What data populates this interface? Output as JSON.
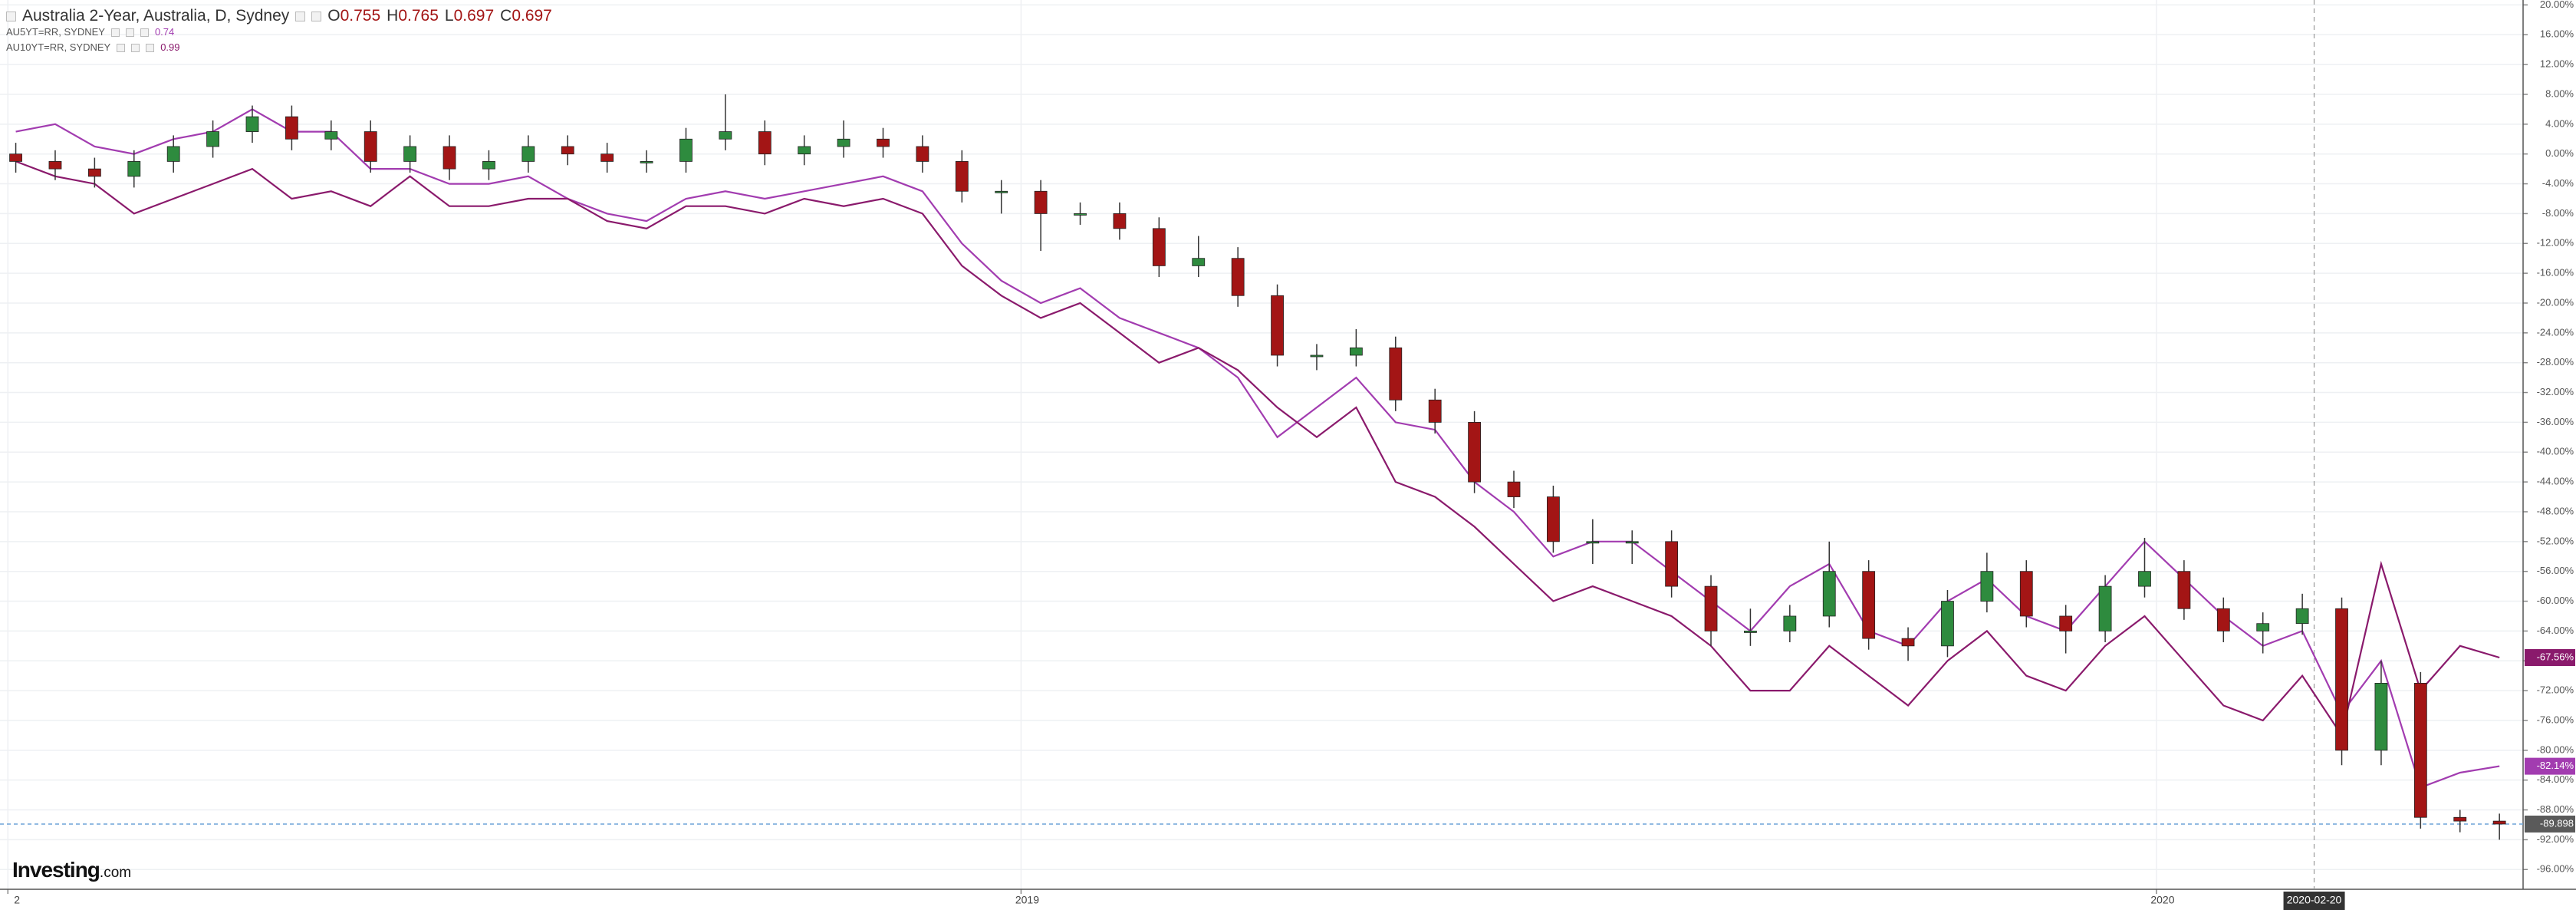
{
  "chart_data": {
    "type": "candlestick",
    "title": "Australia 2-Year, Australia, D, Sydney",
    "ohlc": [
      {
        "key": "O",
        "value": 0.755
      },
      {
        "key": "H",
        "value": 0.765
      },
      {
        "key": "L",
        "value": 0.697
      },
      {
        "key": "C",
        "value": 0.697
      }
    ],
    "up_color": "#2e8b3e",
    "down_color": "#a31515",
    "open": [
      0,
      -1,
      -2,
      -3,
      -1,
      1,
      3,
      5,
      2,
      3,
      -1,
      1,
      -2,
      -1,
      1,
      0,
      -1,
      -1,
      2,
      3,
      0,
      1,
      2,
      1,
      -1,
      -5,
      -5,
      -8,
      -8,
      -10,
      -15,
      -14,
      -19,
      -27,
      -27,
      -26,
      -33,
      -36,
      -44,
      -46,
      -52,
      -52,
      -52,
      -58,
      -64,
      -64,
      -62,
      -56,
      -65,
      -66,
      -60,
      -56,
      -62,
      -64,
      -58,
      -56,
      -61,
      -64,
      -63,
      -61,
      -80,
      -71,
      -89,
      -89.5
    ],
    "high": [
      1.5,
      0.5,
      -0.5,
      0.5,
      2.5,
      4.5,
      6.5,
      6.5,
      4.5,
      4.5,
      2.5,
      2.5,
      0.5,
      2.5,
      2.5,
      1.5,
      0.5,
      3.5,
      8,
      4.5,
      2.5,
      4.5,
      3.5,
      2.5,
      0.5,
      -3.5,
      -3.5,
      -6.5,
      -6.5,
      -8.5,
      -11,
      -12.5,
      -17.5,
      -25.5,
      -23.5,
      -24.5,
      -31.5,
      -34.5,
      -42.5,
      -44.5,
      -49,
      -50.5,
      -50.5,
      -56.5,
      -61,
      -60.5,
      -52,
      -54.5,
      -63.5,
      -58.5,
      -53.5,
      -54.5,
      -60.5,
      -56.5,
      -51.5,
      -54.5,
      -59.5,
      -61.5,
      -59,
      -59.5,
      -68,
      -69.5,
      -88,
      -88.5
    ],
    "low": [
      -2.5,
      -3.5,
      -4.5,
      -4.5,
      -2.5,
      -0.5,
      1.5,
      0.5,
      0.5,
      -2.5,
      -2.5,
      -3.5,
      -3.5,
      -2.5,
      -1.5,
      -2.5,
      -2.5,
      -2.5,
      0.5,
      -1.5,
      -1.5,
      -0.5,
      -0.5,
      -2.5,
      -6.5,
      -8,
      -13,
      -9.5,
      -11.5,
      -16.5,
      -16.5,
      -20.5,
      -28.5,
      -29,
      -28.5,
      -34.5,
      -37.5,
      -45.5,
      -47.5,
      -53.5,
      -55,
      -55,
      -59.5,
      -66,
      -66,
      -65.5,
      -63.5,
      -66.5,
      -68,
      -67.5,
      -61.5,
      -63.5,
      -67,
      -65.5,
      -59.5,
      -62.5,
      -65.5,
      -67,
      -64.5,
      -82,
      -82,
      -90.5,
      -91,
      -92
    ],
    "close": [
      -1,
      -2,
      -3,
      -1,
      1,
      3,
      5,
      2,
      3,
      -1,
      1,
      -2,
      -1,
      1,
      0,
      -1,
      -1,
      2,
      3,
      0,
      1,
      2,
      1,
      -1,
      -5,
      -5,
      -8,
      -8,
      -10,
      -15,
      -14,
      -19,
      -27,
      -27,
      -26,
      -33,
      -36,
      -44,
      -46,
      -52,
      -52,
      -52,
      -58,
      -64,
      -64,
      -62,
      -56,
      -65,
      -66,
      -60,
      -56,
      -62,
      -64,
      -58,
      -56,
      -61,
      -64,
      -63,
      -61,
      -80,
      -71,
      -89,
      -89.5,
      -89.898
    ],
    "close_labels": [
      null,
      null,
      null,
      null,
      null,
      null,
      null,
      null,
      null,
      null,
      null,
      null,
      null,
      null,
      null,
      null,
      null,
      null,
      null,
      null,
      null,
      null,
      null,
      null,
      null,
      null,
      null,
      null,
      null,
      null,
      null,
      null,
      null,
      null,
      null,
      null,
      null,
      null,
      null,
      null,
      null,
      null,
      null,
      null,
      null,
      null,
      null,
      null,
      null,
      null,
      null,
      null,
      null,
      null,
      null,
      null,
      null,
      null,
      null,
      null,
      null,
      null,
      null,
      "-89.898"
    ],
    "overlays": [
      {
        "name": "AU5YT=RR, SYDNEY",
        "legend_value": 0.74,
        "color": "#a23cb0",
        "values": [
          3,
          4,
          1,
          0,
          2,
          3,
          6,
          3,
          3,
          -2,
          -2,
          -4,
          -4,
          -3,
          -6,
          -8,
          -9,
          -6,
          -5,
          -6,
          -5,
          -4,
          -3,
          -5,
          -12,
          -17,
          -20,
          -18,
          -22,
          -24,
          -26,
          -30,
          -38,
          -34,
          -30,
          -36,
          -37,
          -44,
          -48,
          -54,
          -52,
          -52,
          -56,
          -60,
          -64,
          -58,
          -55,
          -64,
          -66,
          -60,
          -57,
          -62,
          -64,
          -58,
          -52,
          -57,
          -62,
          -66,
          -64,
          -75,
          -68,
          -85,
          -83,
          -82.14
        ],
        "value_labels": [
          null,
          null,
          null,
          null,
          null,
          null,
          null,
          null,
          null,
          null,
          null,
          null,
          null,
          null,
          null,
          null,
          null,
          null,
          null,
          null,
          null,
          null,
          null,
          null,
          null,
          null,
          null,
          null,
          null,
          null,
          null,
          null,
          null,
          null,
          null,
          null,
          null,
          null,
          null,
          null,
          null,
          null,
          null,
          null,
          null,
          null,
          null,
          null,
          null,
          null,
          null,
          null,
          null,
          null,
          null,
          null,
          null,
          null,
          null,
          null,
          null,
          null,
          null,
          "-82.14%"
        ]
      },
      {
        "name": "AU10YT=RR, SYDNEY",
        "legend_value": 0.99,
        "color": "#8a1a6c",
        "values": [
          -1,
          -3,
          -4,
          -8,
          -6,
          -4,
          -2,
          -6,
          -5,
          -7,
          -3,
          -7,
          -7,
          -6,
          -6,
          -9,
          -10,
          -7,
          -7,
          -8,
          -6,
          -7,
          -6,
          -8,
          -15,
          -19,
          -22,
          -20,
          -24,
          -28,
          -26,
          -29,
          -34,
          -38,
          -34,
          -44,
          -46,
          -50,
          -55,
          -60,
          -58,
          -60,
          -62,
          -66,
          -72,
          -72,
          -66,
          -70,
          -74,
          -68,
          -64,
          -70,
          -72,
          -66,
          -62,
          -68,
          -74,
          -76,
          -70,
          -78,
          -55,
          -72,
          -66,
          -67.56
        ],
        "value_labels": [
          null,
          null,
          null,
          null,
          null,
          null,
          null,
          null,
          null,
          null,
          null,
          null,
          null,
          null,
          null,
          null,
          null,
          null,
          null,
          null,
          null,
          null,
          null,
          null,
          null,
          null,
          null,
          null,
          null,
          null,
          null,
          null,
          null,
          null,
          null,
          null,
          null,
          null,
          null,
          null,
          null,
          null,
          null,
          null,
          null,
          null,
          null,
          null,
          null,
          null,
          null,
          null,
          null,
          null,
          null,
          null,
          null,
          null,
          null,
          null,
          null,
          null,
          null,
          "-67.56%"
        ]
      }
    ],
    "xlim": [
      -0.4,
      63.6
    ],
    "xticks": [
      {
        "value": -0.2,
        "label": "2"
      },
      {
        "value": 25.5,
        "label": "2019"
      },
      {
        "value": 54.3,
        "label": "2020"
      }
    ],
    "crosshair_x": {
      "value": 58.3,
      "label": "2020-02-20"
    },
    "ylim": [
      -98.65,
      20.66
    ],
    "yticks": [
      {
        "value": 20,
        "label": "20.00%"
      },
      {
        "value": 16,
        "label": "16.00%"
      },
      {
        "value": 12,
        "label": "12.00%"
      },
      {
        "value": 8,
        "label": "8.00%"
      },
      {
        "value": 4,
        "label": "4.00%"
      },
      {
        "value": 0,
        "label": "0.00%"
      },
      {
        "value": -4,
        "label": "-4.00%"
      },
      {
        "value": -8,
        "label": "-8.00%"
      },
      {
        "value": -12,
        "label": "-12.00%"
      },
      {
        "value": -16,
        "label": "-16.00%"
      },
      {
        "value": -20,
        "label": "-20.00%"
      },
      {
        "value": -24,
        "label": "-24.00%"
      },
      {
        "value": -28,
        "label": "-28.00%"
      },
      {
        "value": -32,
        "label": "-32.00%"
      },
      {
        "value": -36,
        "label": "-36.00%"
      },
      {
        "value": -40,
        "label": "-40.00%"
      },
      {
        "value": -44,
        "label": "-44.00%"
      },
      {
        "value": -48,
        "label": "-48.00%"
      },
      {
        "value": -52,
        "label": "-52.00%"
      },
      {
        "value": -56,
        "label": "-56.00%"
      },
      {
        "value": -60,
        "label": "-60.00%"
      },
      {
        "value": -64,
        "label": "-64.00%"
      },
      {
        "value": -68,
        "label": "-68.00%"
      },
      {
        "value": -72,
        "label": "-72.00%"
      },
      {
        "value": -76,
        "label": "-76.00%"
      },
      {
        "value": -80,
        "label": "-80.00%"
      },
      {
        "value": -84,
        "label": "-84.00%"
      },
      {
        "value": -88,
        "label": "-88.00%"
      },
      {
        "value": -92,
        "label": "-92.00%"
      },
      {
        "value": -96,
        "label": "-96.00%"
      }
    ],
    "grid": true,
    "watermark": [
      "Investing",
      ".com"
    ]
  }
}
